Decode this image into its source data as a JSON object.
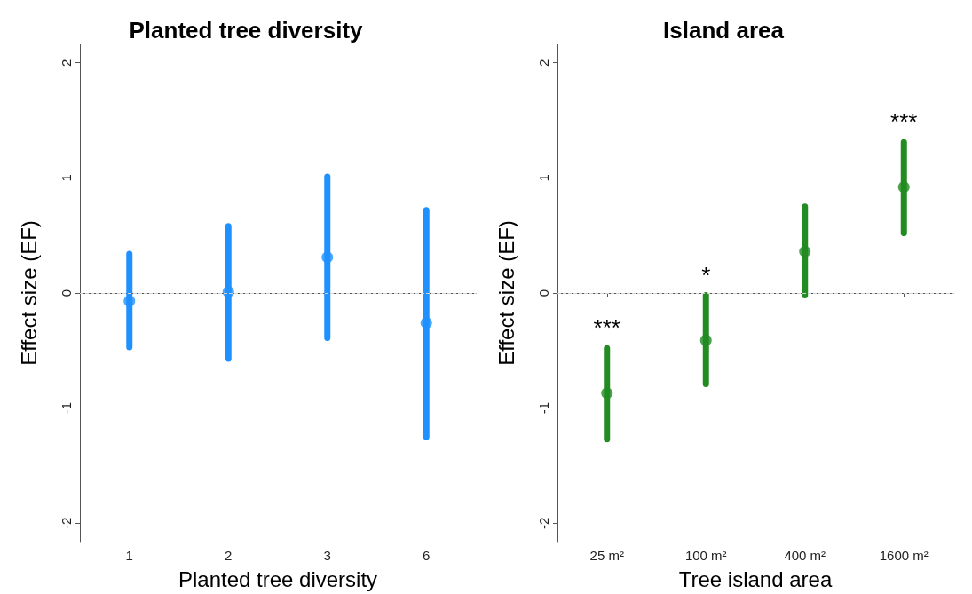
{
  "chart_data": [
    {
      "type": "scatter",
      "title": "Planted tree diversity",
      "xlabel": "Planted tree diversity",
      "ylabel": "Effect size (EF)",
      "categories": [
        "1",
        "2",
        "3",
        "6"
      ],
      "values": [
        -0.07,
        0.01,
        0.31,
        -0.26
      ],
      "errors": [
        [
          -0.47,
          0.34
        ],
        [
          -0.57,
          0.58
        ],
        [
          -0.39,
          1.01
        ],
        [
          -1.25,
          0.72
        ]
      ],
      "color": "#1e90ff",
      "marker": "circle",
      "ylim": [
        -2.16,
        2.16
      ],
      "yticks": [
        -2,
        -1,
        0,
        1,
        2
      ],
      "ref_lines": [
        {
          "axis": "y",
          "value": 0,
          "color": "#d3d3d3",
          "line_style": "dashed"
        }
      ]
    },
    {
      "type": "scatter",
      "title": "Island area",
      "xlabel": "Tree island area",
      "ylabel": "Effect size (EF)",
      "categories": [
        "25 m²",
        "100 m²",
        "400 m²",
        "1600 m²"
      ],
      "values": [
        -0.87,
        -0.41,
        0.36,
        0.92
      ],
      "errors": [
        [
          -1.27,
          -0.48
        ],
        [
          -0.79,
          -0.02
        ],
        [
          -0.02,
          0.75
        ],
        [
          0.52,
          1.31
        ]
      ],
      "color": "#228b22",
      "marker": "circle",
      "ylim": [
        -2.16,
        2.16
      ],
      "yticks": [
        -2,
        -1,
        0,
        1,
        2
      ],
      "ref_lines": [
        {
          "axis": "y",
          "value": 0,
          "color": "#d3d3d3",
          "line_style": "dashed"
        }
      ],
      "annotations": [
        {
          "text": "***",
          "x": "25 m²",
          "y": -0.48
        },
        {
          "text": "*",
          "x": "100 m²",
          "y": -0.02
        },
        {
          "text": "***",
          "x": "1600 m²",
          "y": 1.31
        }
      ]
    }
  ]
}
